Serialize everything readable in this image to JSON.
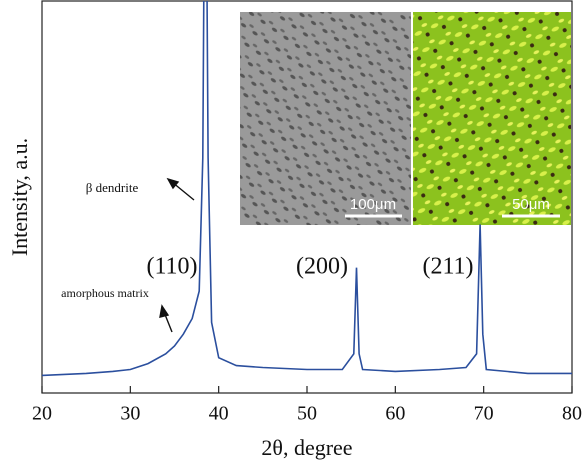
{
  "chart_data": {
    "type": "line",
    "x_label": "2θ, degree",
    "y_label": "Intensity, a.u.",
    "x": [
      20,
      25,
      28,
      30,
      32,
      34,
      35,
      36,
      37,
      37.8,
      38.2,
      38.4,
      38.6,
      38.8,
      39.2,
      40,
      42,
      45,
      50,
      54,
      55.3,
      55.6,
      55.9,
      56.3,
      60,
      65,
      68,
      69.2,
      69.6,
      69.9,
      70.3,
      75,
      80
    ],
    "values": [
      4.5,
      5,
      5.5,
      6,
      7.5,
      10,
      12,
      15,
      19,
      26,
      60,
      130,
      130,
      60,
      18,
      9,
      7,
      6.5,
      6,
      6,
      10,
      32,
      10,
      6,
      5.5,
      6,
      6.5,
      10,
      43,
      15,
      6,
      5,
      5
    ],
    "color": "#2b4f9e",
    "xlim": [
      20,
      80
    ],
    "xticks": [
      20,
      30,
      40,
      50,
      60,
      70,
      80
    ],
    "ylim": [
      0,
      100
    ],
    "peak_labels": [
      "(110)",
      "(200)",
      "(211)"
    ],
    "annotations": [
      "β dendrite",
      "amorphous matrix"
    ],
    "inset_labels": [
      "100μm",
      "50μm"
    ]
  }
}
